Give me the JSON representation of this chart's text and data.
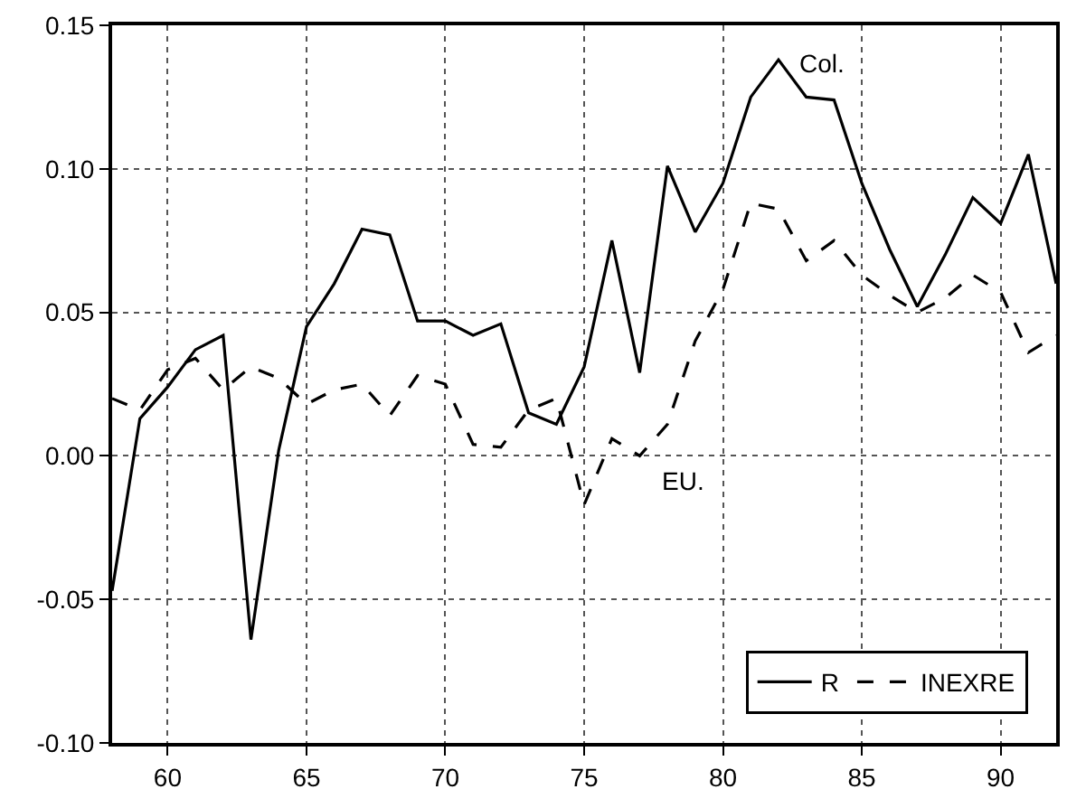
{
  "chart_data": {
    "type": "line",
    "x": [
      58,
      59,
      60,
      61,
      62,
      63,
      64,
      65,
      66,
      67,
      68,
      69,
      70,
      71,
      72,
      73,
      74,
      75,
      76,
      77,
      78,
      79,
      80,
      81,
      82,
      83,
      84,
      85,
      86,
      87,
      88,
      89,
      90,
      91,
      92
    ],
    "series": [
      {
        "name": "R",
        "color": "#000000",
        "line_style": "solid",
        "values": [
          -0.047,
          0.013,
          0.024,
          0.037,
          0.042,
          -0.064,
          0.002,
          0.045,
          0.06,
          0.079,
          0.077,
          0.047,
          0.047,
          0.042,
          0.046,
          0.015,
          0.011,
          0.031,
          0.075,
          0.029,
          0.101,
          0.078,
          0.095,
          0.125,
          0.138,
          0.125,
          0.124,
          0.095,
          0.072,
          0.052,
          0.07,
          0.09,
          0.081,
          0.105,
          0.06
        ]
      },
      {
        "name": "INEXRE",
        "color": "#000000",
        "line_style": "dashed",
        "values": [
          0.02,
          0.016,
          0.03,
          0.034,
          0.023,
          0.031,
          0.027,
          0.018,
          0.023,
          0.025,
          0.014,
          0.028,
          0.025,
          0.004,
          0.003,
          0.016,
          0.02,
          -0.017,
          0.006,
          0.0,
          0.011,
          0.04,
          0.058,
          0.088,
          0.086,
          0.068,
          0.075,
          0.063,
          0.056,
          0.05,
          0.055,
          0.063,
          0.057,
          0.036,
          0.042
        ]
      }
    ],
    "annotations": [
      {
        "text": "Col.",
        "x": 82,
        "y": 0.138
      },
      {
        "text": "EU.",
        "x": 77,
        "y": 0.0
      }
    ],
    "xlim": [
      58,
      92
    ],
    "xticks": [
      60,
      65,
      70,
      75,
      80,
      85,
      90
    ],
    "ylim": [
      -0.1,
      0.15
    ],
    "yticks": [
      {
        "value": -0.1,
        "label": "-0.10"
      },
      {
        "value": -0.05,
        "label": "-0.05"
      },
      {
        "value": 0.0,
        "label": "0.00"
      },
      {
        "value": 0.05,
        "label": "0.05"
      },
      {
        "value": 0.1,
        "label": "0.10"
      },
      {
        "value": 0.15,
        "label": "0.15"
      }
    ],
    "grid": true,
    "legend": "bottom right",
    "marker": "none"
  }
}
